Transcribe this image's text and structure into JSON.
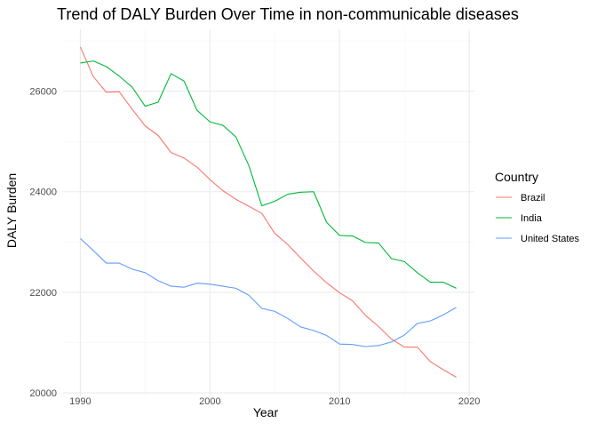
{
  "chart_data": {
    "type": "line",
    "title": "Trend of DALY Burden Over Time in non-communicable diseases",
    "xlabel": "Year",
    "ylabel": "DALY Burden",
    "xlim": [
      1988.6,
      2020.4
    ],
    "ylim": [
      19930,
      27230
    ],
    "x_ticks": [
      1990,
      2000,
      2010,
      2020
    ],
    "x_tick_labels": [
      "1990",
      "2000",
      "2010",
      "2020"
    ],
    "x_minor_ticks": [
      1995,
      2005,
      2015
    ],
    "y_ticks": [
      20000,
      22000,
      24000,
      26000
    ],
    "y_tick_labels": [
      "20000",
      "22000",
      "24000",
      "26000"
    ],
    "y_minor_ticks": [
      21000,
      23000,
      25000,
      27000
    ],
    "grid": true,
    "legend": {
      "title": "Country",
      "position": "right"
    },
    "x": [
      1990,
      1991,
      1992,
      1993,
      1994,
      1995,
      1996,
      1997,
      1998,
      1999,
      2000,
      2001,
      2002,
      2003,
      2004,
      2005,
      2006,
      2007,
      2008,
      2009,
      2010,
      2011,
      2012,
      2013,
      2014,
      2015,
      2016,
      2017,
      2018,
      2019
    ],
    "series": [
      {
        "name": "Brazil",
        "color": "#F8766D",
        "values": [
          26880,
          26290,
          25980,
          25990,
          25640,
          25310,
          25120,
          24780,
          24670,
          24490,
          24240,
          24020,
          23850,
          23710,
          23570,
          23170,
          22950,
          22680,
          22420,
          22190,
          21990,
          21830,
          21540,
          21320,
          21070,
          20910,
          20910,
          20620,
          20460,
          20310
        ]
      },
      {
        "name": "India",
        "color": "#00BA38",
        "values": [
          26560,
          26600,
          26490,
          26300,
          26080,
          25700,
          25780,
          26350,
          26200,
          25620,
          25390,
          25320,
          25090,
          24520,
          23720,
          23810,
          23950,
          23990,
          24000,
          23390,
          23130,
          23120,
          22990,
          22980,
          22670,
          22610,
          22390,
          22200,
          22200,
          22080
        ]
      },
      {
        "name": "United States",
        "color": "#619CFF",
        "values": [
          23070,
          22830,
          22580,
          22580,
          22460,
          22390,
          22230,
          22120,
          22100,
          22180,
          22160,
          22120,
          22080,
          21940,
          21680,
          21620,
          21480,
          21310,
          21240,
          21140,
          20970,
          20960,
          20920,
          20940,
          21010,
          21150,
          21380,
          21430,
          21550,
          21700
        ]
      }
    ]
  }
}
